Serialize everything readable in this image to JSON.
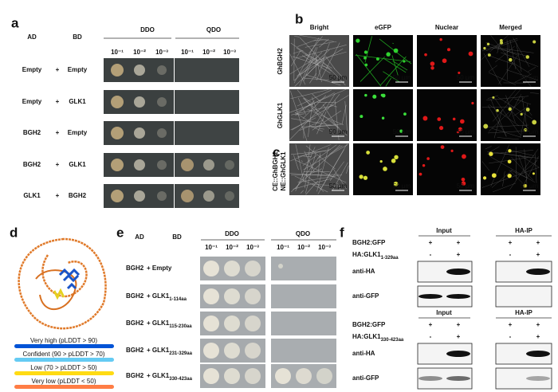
{
  "panel_a": {
    "label": "a",
    "ad_header": "AD",
    "bd_header": "BD",
    "media": [
      "DDO",
      "QDO"
    ],
    "dilutions": [
      "10⁻¹",
      "10⁻²",
      "10⁻³"
    ],
    "rows": [
      {
        "ad": "Empty",
        "plus": "+",
        "bd": "Empty"
      },
      {
        "ad": "Empty",
        "plus": "+",
        "bd": "GLK1"
      },
      {
        "ad": "BGH2",
        "plus": "+",
        "bd": "Empty"
      },
      {
        "ad": "BGH2",
        "plus": "+",
        "bd": "GLK1"
      },
      {
        "ad": "GLK1",
        "plus": "+",
        "bd": "BGH2"
      }
    ]
  },
  "panel_b": {
    "label": "b",
    "columns": [
      "Bright",
      "eGFP",
      "Nuclear",
      "Merged"
    ],
    "rows": [
      "GhBGH2",
      "GhGLK1"
    ],
    "scale_bar": "50 μm"
  },
  "panel_c": {
    "label": "c",
    "row_label": [
      "CE::GhBGH2",
      "NE::GhGLK1"
    ]
  },
  "panel_d": {
    "label": "d",
    "legend": [
      "Very high (pLDDT > 90)",
      "Confident (90 > pLDDT > 70)",
      "Low (70 > pLDDT > 50)",
      "Very low (pLDDT < 50)"
    ]
  },
  "panel_e": {
    "label": "e",
    "ad_header": "AD",
    "bd_header": "BD",
    "media": [
      "DDO",
      "QDO"
    ],
    "dilutions": [
      "10⁻¹",
      "10⁻²",
      "10⁻³"
    ],
    "rows": [
      {
        "ad": "BGH2",
        "bd": "+ Empty",
        "sub": null
      },
      {
        "ad": "BGH2",
        "bd": "+ GLK1",
        "sub": "1-114aa"
      },
      {
        "ad": "BGH2",
        "bd": "+ GLK1",
        "sub": "115-230aa"
      },
      {
        "ad": "BGH2",
        "bd": "+ GLK1",
        "sub": "231-329aa"
      },
      {
        "ad": "BGH2",
        "bd": "+ GLK1",
        "sub": "330-423aa"
      }
    ]
  },
  "panel_f": {
    "label": "f",
    "blocks": [
      {
        "headers": [
          "Input",
          "HA-IP"
        ],
        "rows": [
          {
            "label": "BGH2:GFP",
            "sub": null,
            "signs": [
              "+",
              "+",
              "+",
              "+"
            ]
          },
          {
            "label": "HA:GLK1",
            "sub": "1-329aa",
            "signs": [
              "-",
              "+",
              "-",
              "+"
            ]
          }
        ],
        "blots": [
          "anti-HA",
          "anti-GFP"
        ]
      },
      {
        "headers": [
          "Input",
          "HA-IP"
        ],
        "rows": [
          {
            "label": "BGH2:GFP",
            "sub": null,
            "signs": [
              "+",
              "+",
              "+",
              "+"
            ]
          },
          {
            "label": "HA:GLK1",
            "sub": "330-423aa",
            "signs": [
              "-",
              "+",
              "-",
              "+"
            ]
          }
        ],
        "blots": [
          "anti-HA",
          "anti-GFP"
        ]
      }
    ]
  }
}
